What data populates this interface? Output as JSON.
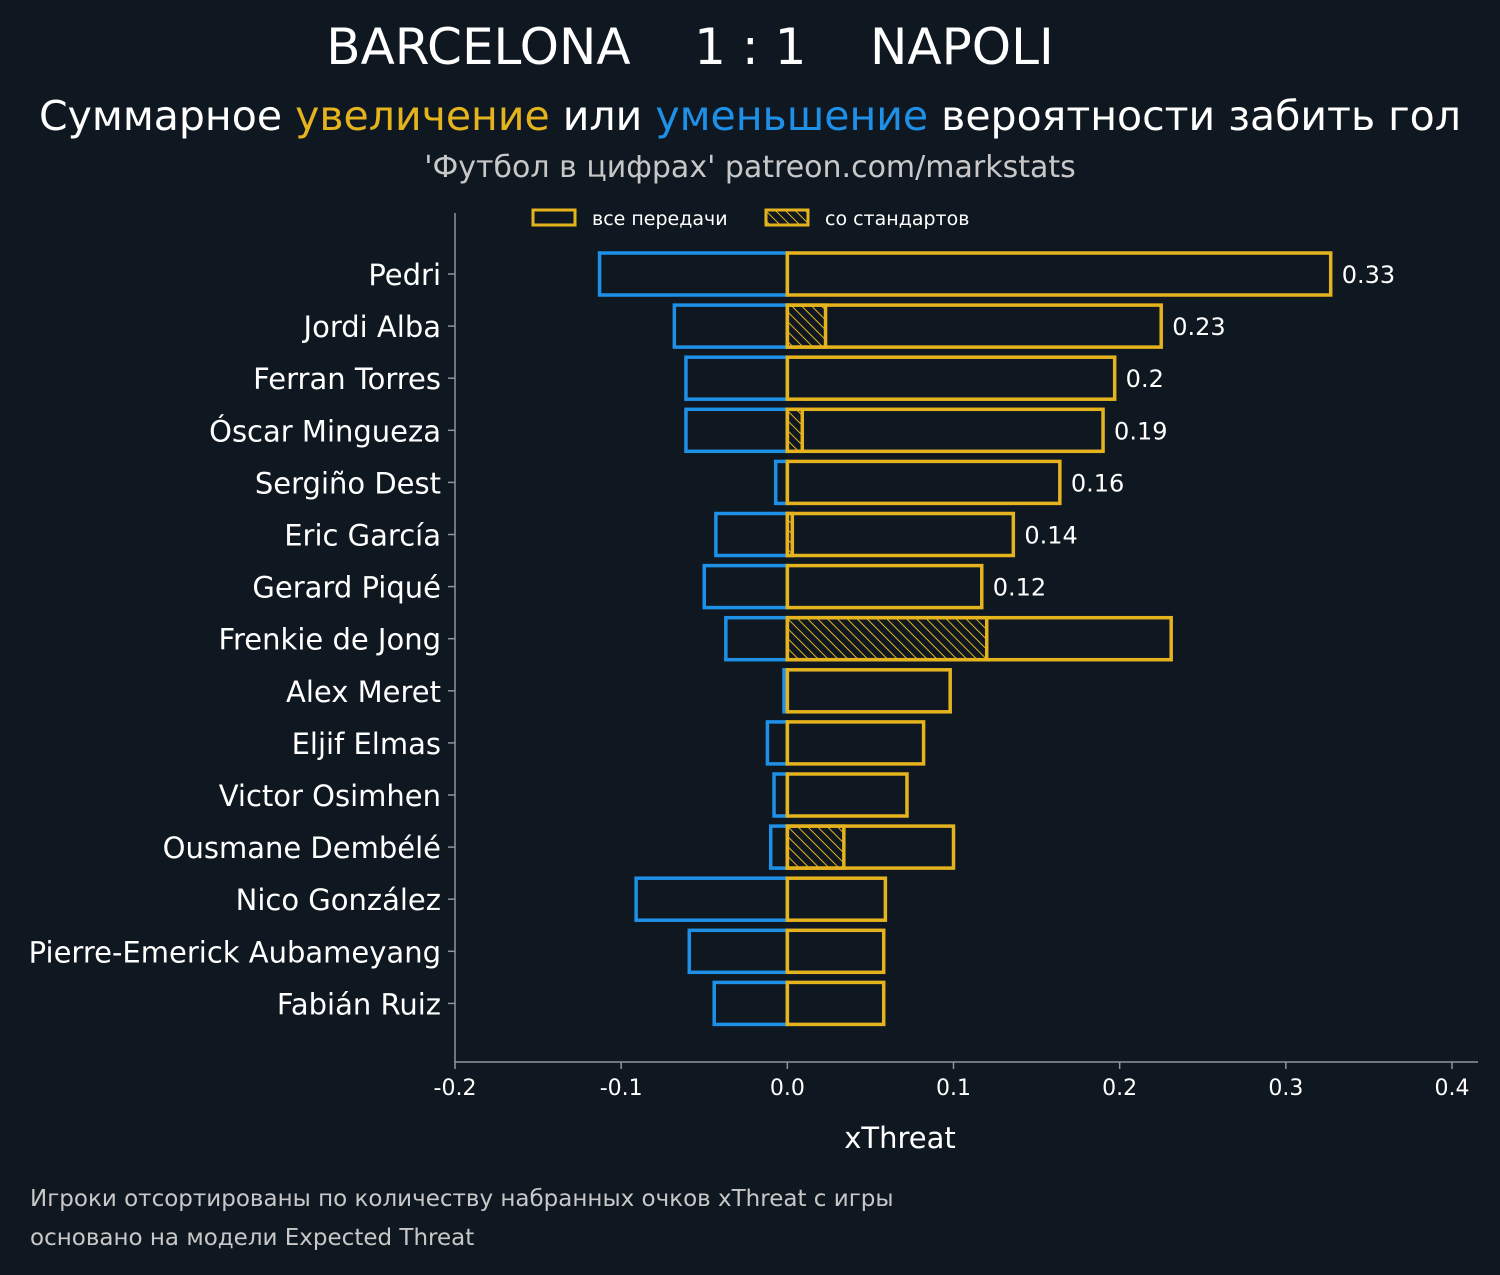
{
  "header": {
    "title": "BARCELONA    1 : 1    NAPOLI",
    "subtitle_part1": "Суммарное ",
    "subtitle_increase": "увеличение",
    "subtitle_part2": " или ",
    "subtitle_decrease": "уменьшение",
    "subtitle_part3": " вероятности забить гол",
    "source": "'Футбол в цифрах' patreon.com/markstats"
  },
  "footer": {
    "line1": "Игроки отсортированы по количеству набранных очков xThreat с игры",
    "line2": "основано на модели Expected Threat"
  },
  "colors": {
    "background": "#0f1820",
    "increase": "#e5b31e",
    "decrease": "#1f90e8",
    "axis": "#8d969c",
    "text": "#ffffff"
  },
  "chart_data": {
    "type": "bar",
    "orientation": "horizontal",
    "xlabel": "xThreat",
    "xlim": [
      -0.2,
      0.4
    ],
    "xticks": [
      -0.2,
      -0.1,
      0.0,
      0.1,
      0.2,
      0.3,
      0.4
    ],
    "xtick_labels": [
      "-0.2",
      "-0.1",
      "0.0",
      "0.1",
      "0.2",
      "0.3",
      "0.4"
    ],
    "grid": false,
    "legend": {
      "placement": "top",
      "entries": [
        {
          "label": "все передачи",
          "style": "outline"
        },
        {
          "label": "со стандартов",
          "style": "hatched"
        }
      ]
    },
    "categories": [
      "Pedri",
      "Jordi Alba",
      "Ferran Torres",
      "Óscar Mingueza",
      "Sergiño Dest",
      "Eric García",
      "Gerard Piqué",
      "Frenkie de Jong",
      "Alex Meret",
      "Eljif Elmas",
      "Victor Osimhen",
      "Ousmane Dembélé",
      "Nico González",
      "Pierre-Emerick Aubameyang",
      "Fabián Ruiz"
    ],
    "series": [
      {
        "name": "все передачи",
        "key": "positive",
        "values": [
          0.327,
          0.225,
          0.197,
          0.19,
          0.164,
          0.136,
          0.117,
          0.231,
          0.098,
          0.082,
          0.072,
          0.1,
          0.059,
          0.058,
          0.058
        ]
      },
      {
        "name": "со стандартов",
        "key": "set_pieces",
        "values": [
          0.0,
          0.023,
          0.0,
          0.009,
          0.0,
          0.003,
          0.0,
          0.12,
          0.0,
          0.0,
          0.0,
          0.034,
          0.0,
          0.0,
          0.0
        ]
      },
      {
        "key": "negative",
        "values": [
          -0.113,
          -0.068,
          -0.061,
          -0.061,
          -0.007,
          -0.043,
          -0.05,
          -0.037,
          -0.002,
          -0.012,
          -0.008,
          -0.01,
          -0.091,
          -0.059,
          -0.044
        ]
      }
    ],
    "net_labels": [
      "0.33",
      "0.23",
      "0.2",
      "0.19",
      "0.16",
      "0.14",
      "0.12",
      "",
      "",
      "",
      "",
      "",
      "",
      "",
      ""
    ]
  }
}
